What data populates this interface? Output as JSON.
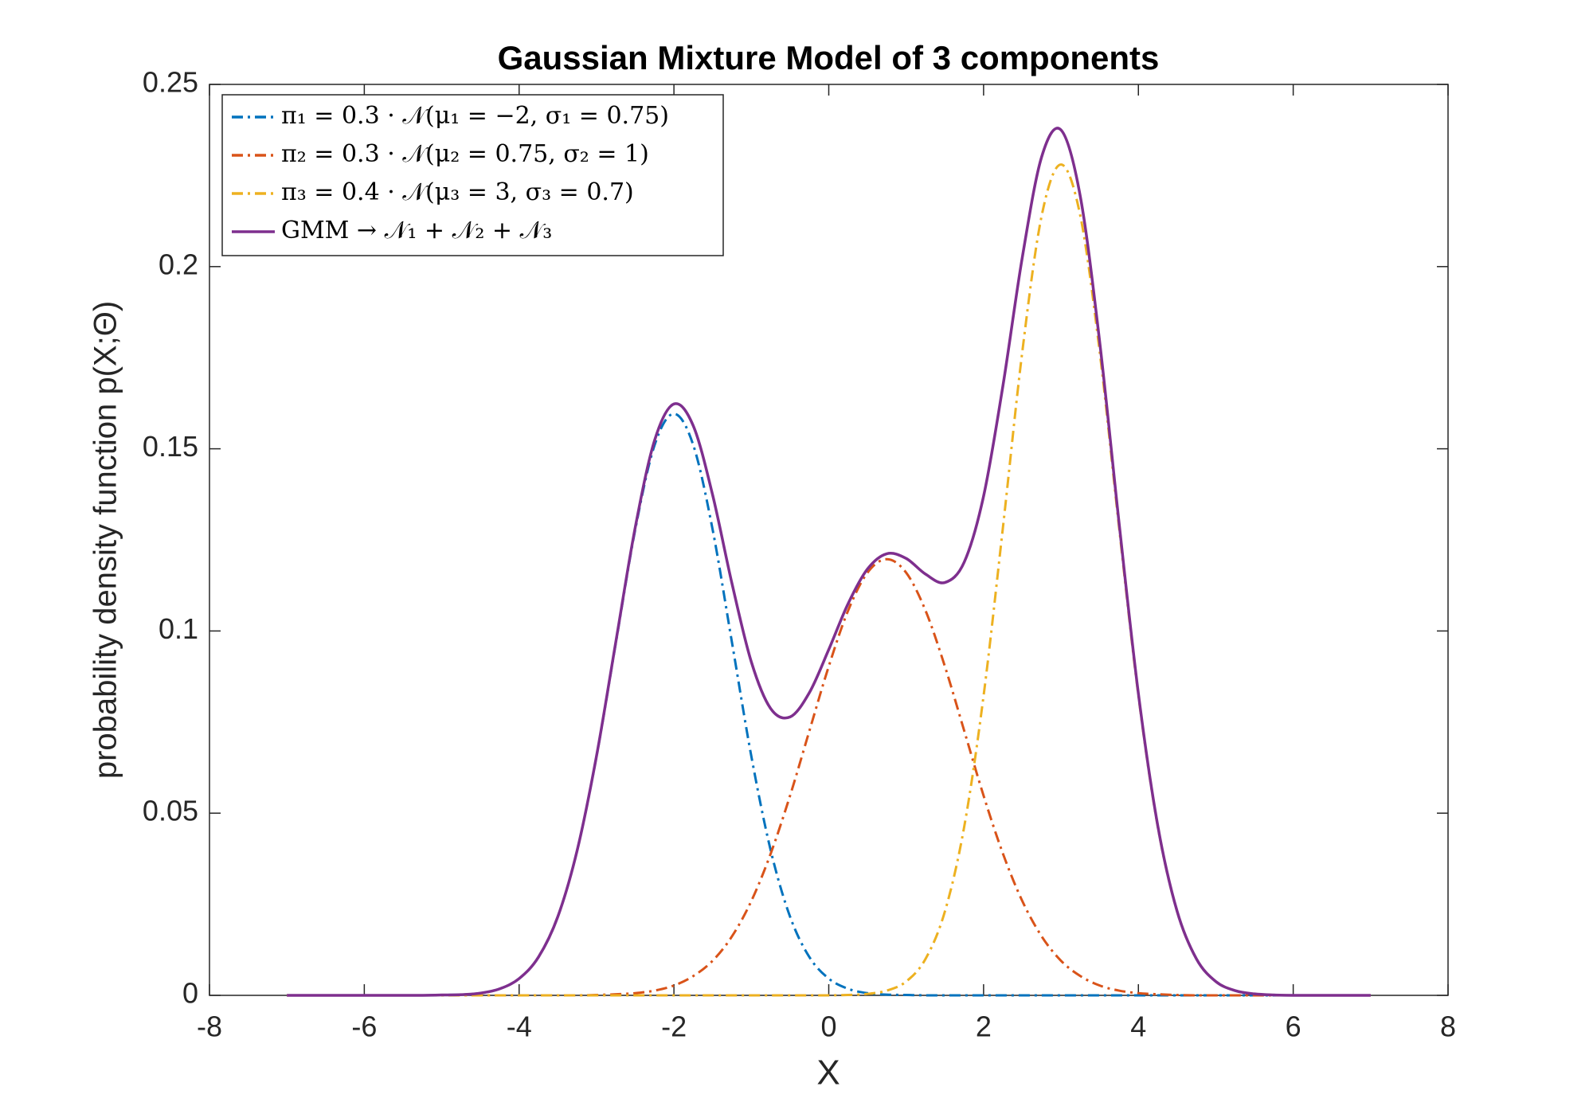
{
  "chart_data": {
    "type": "line",
    "title": "Gaussian Mixture Model of 3 components",
    "x_label": "X",
    "y_label": "probability density function p(X;Θ)",
    "x": [
      -7,
      -6.75,
      -6.5,
      -6.25,
      -6,
      -5.75,
      -5.5,
      -5.25,
      -5,
      -4.75,
      -4.5,
      -4.25,
      -4,
      -3.75,
      -3.5,
      -3.25,
      -3,
      -2.75,
      -2.5,
      -2.25,
      -2,
      -1.75,
      -1.5,
      -1.25,
      -1,
      -0.75,
      -0.5,
      -0.25,
      0,
      0.25,
      0.5,
      0.75,
      1,
      1.25,
      1.5,
      1.75,
      2,
      2.25,
      2.5,
      2.75,
      3,
      3.25,
      3.5,
      3.75,
      4,
      4.25,
      4.5,
      4.75,
      5,
      5.25,
      5.5,
      5.75,
      6,
      6.25,
      6.5,
      6.75,
      7
    ],
    "series": [
      {
        "name": "π₁ = 0.3 · 𝒩(μ₁ = −2, σ₁ = 0.75)",
        "color": "#0072BD",
        "style": "dashdot",
        "values": [
          0,
          0,
          0,
          0,
          0,
          0,
          0,
          0,
          0.0001,
          0.0002,
          0.0006,
          0.0018,
          0.0046,
          0.0105,
          0.0216,
          0.0398,
          0.0656,
          0.0968,
          0.1278,
          0.151,
          0.1596,
          0.151,
          0.1278,
          0.0968,
          0.0656,
          0.0398,
          0.0216,
          0.0105,
          0.0046,
          0.0018,
          0.0006,
          0.0002,
          0.0001,
          0,
          0,
          0,
          0,
          0,
          0,
          0,
          0,
          0,
          0,
          0,
          0,
          0,
          0,
          0,
          0,
          0,
          0,
          0,
          0,
          0,
          0,
          0,
          0
        ]
      },
      {
        "name": "π₂ = 0.3 · 𝒩(μ₂ = 0.75, σ₂ = 1)",
        "color": "#D95319",
        "style": "dashdot",
        "values": [
          0,
          0,
          0,
          0,
          0,
          0,
          0,
          0,
          0,
          0,
          0,
          0,
          0,
          0,
          0,
          0,
          0.0001,
          0.0003,
          0.0006,
          0.0013,
          0.0027,
          0.0053,
          0.0095,
          0.0162,
          0.0259,
          0.0389,
          0.0548,
          0.0726,
          0.0903,
          0.1056,
          0.116,
          0.1197,
          0.116,
          0.1056,
          0.0903,
          0.0726,
          0.0548,
          0.0389,
          0.0259,
          0.0162,
          0.0095,
          0.0053,
          0.0027,
          0.0013,
          0.0006,
          0.0003,
          0.0001,
          0,
          0,
          0,
          0,
          0,
          0,
          0,
          0,
          0,
          0
        ]
      },
      {
        "name": "π₃ = 0.4 · 𝒩(μ₃ = 3, σ₃ = 0.7)",
        "color": "#EDB120",
        "style": "dashdot",
        "values": [
          0,
          0,
          0,
          0,
          0,
          0,
          0,
          0,
          0,
          0,
          0,
          0,
          0,
          0,
          0,
          0,
          0,
          0,
          0,
          0,
          0,
          0,
          0,
          0,
          0,
          0,
          0,
          0,
          0,
          0.0001,
          0.0004,
          0.0013,
          0.0038,
          0.01,
          0.023,
          0.0463,
          0.0822,
          0.1284,
          0.1766,
          0.2139,
          0.228,
          0.2139,
          0.1766,
          0.1284,
          0.0822,
          0.0463,
          0.023,
          0.01,
          0.0038,
          0.0013,
          0.0004,
          0.0001,
          0,
          0,
          0,
          0,
          0
        ]
      },
      {
        "name": "GMM → 𝒩₁ + 𝒩₂ + 𝒩₃",
        "color": "#7E2F8E",
        "style": "solid",
        "values": [
          0,
          0,
          0,
          0,
          0,
          0,
          0,
          0,
          0.0001,
          0.0002,
          0.0006,
          0.0018,
          0.0046,
          0.0105,
          0.0216,
          0.0398,
          0.0657,
          0.0971,
          0.1284,
          0.1523,
          0.1623,
          0.1563,
          0.1373,
          0.113,
          0.0915,
          0.0787,
          0.0764,
          0.0831,
          0.0949,
          0.1075,
          0.117,
          0.1212,
          0.1199,
          0.1156,
          0.1133,
          0.1189,
          0.137,
          0.1673,
          0.2025,
          0.2301,
          0.2375,
          0.2192,
          0.1793,
          0.1297,
          0.0828,
          0.0466,
          0.0231,
          0.01,
          0.0038,
          0.0013,
          0.0004,
          0.0001,
          0,
          0,
          0,
          0,
          0
        ]
      }
    ],
    "xlim": [
      -8,
      8
    ],
    "xticks": [
      -8,
      -6,
      -4,
      -2,
      0,
      2,
      4,
      6,
      8
    ],
    "ylim": [
      0,
      0.25
    ],
    "yticks": [
      0,
      0.05,
      0.1,
      0.15,
      0.2,
      0.25
    ],
    "grid": false,
    "legend": "upper left"
  }
}
